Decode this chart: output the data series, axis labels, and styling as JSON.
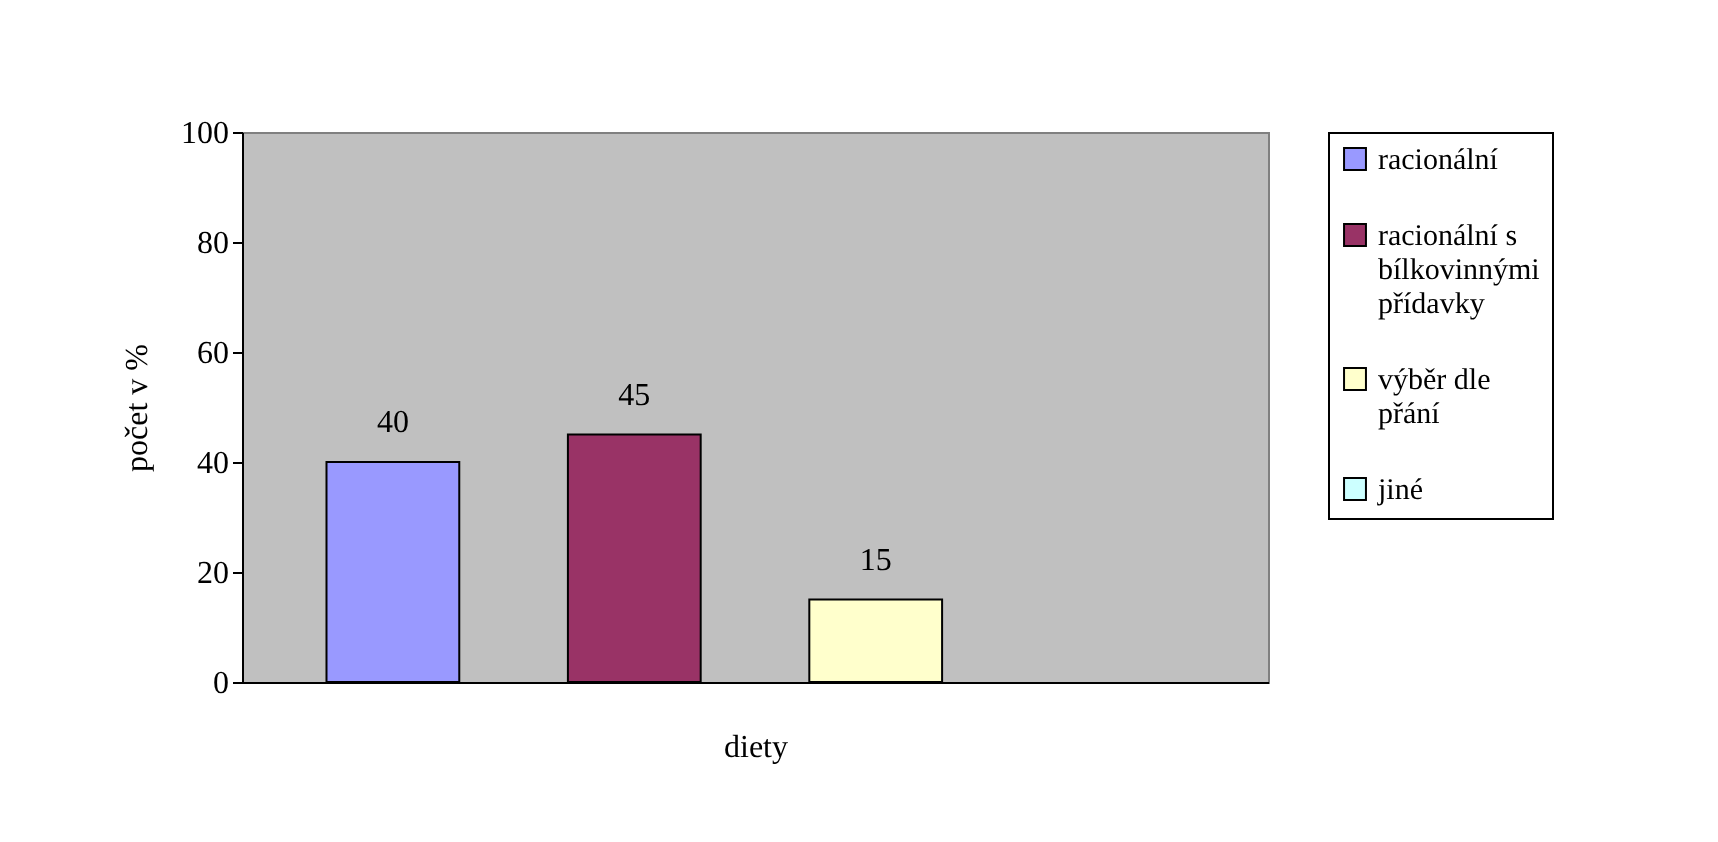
{
  "chart_data": {
    "type": "bar",
    "xlabel": "diety",
    "ylabel": "počet v %",
    "categories": [
      null
    ],
    "series": [
      {
        "name": "racionální",
        "color": "#9999ff",
        "values": [
          40
        ]
      },
      {
        "name": "racionální s bílkovinnými přídavky",
        "color": "#993366",
        "values": [
          45
        ]
      },
      {
        "name": "výběr dle přání",
        "color": "#ffffcc",
        "values": [
          15
        ]
      },
      {
        "name": "jiné",
        "color": "#ccffff",
        "values": [
          null
        ]
      }
    ],
    "ylim": [
      0,
      100
    ],
    "yticks": [
      0,
      20,
      40,
      60,
      80,
      100
    ],
    "grid": false,
    "legend": "right",
    "data_labels": true
  }
}
